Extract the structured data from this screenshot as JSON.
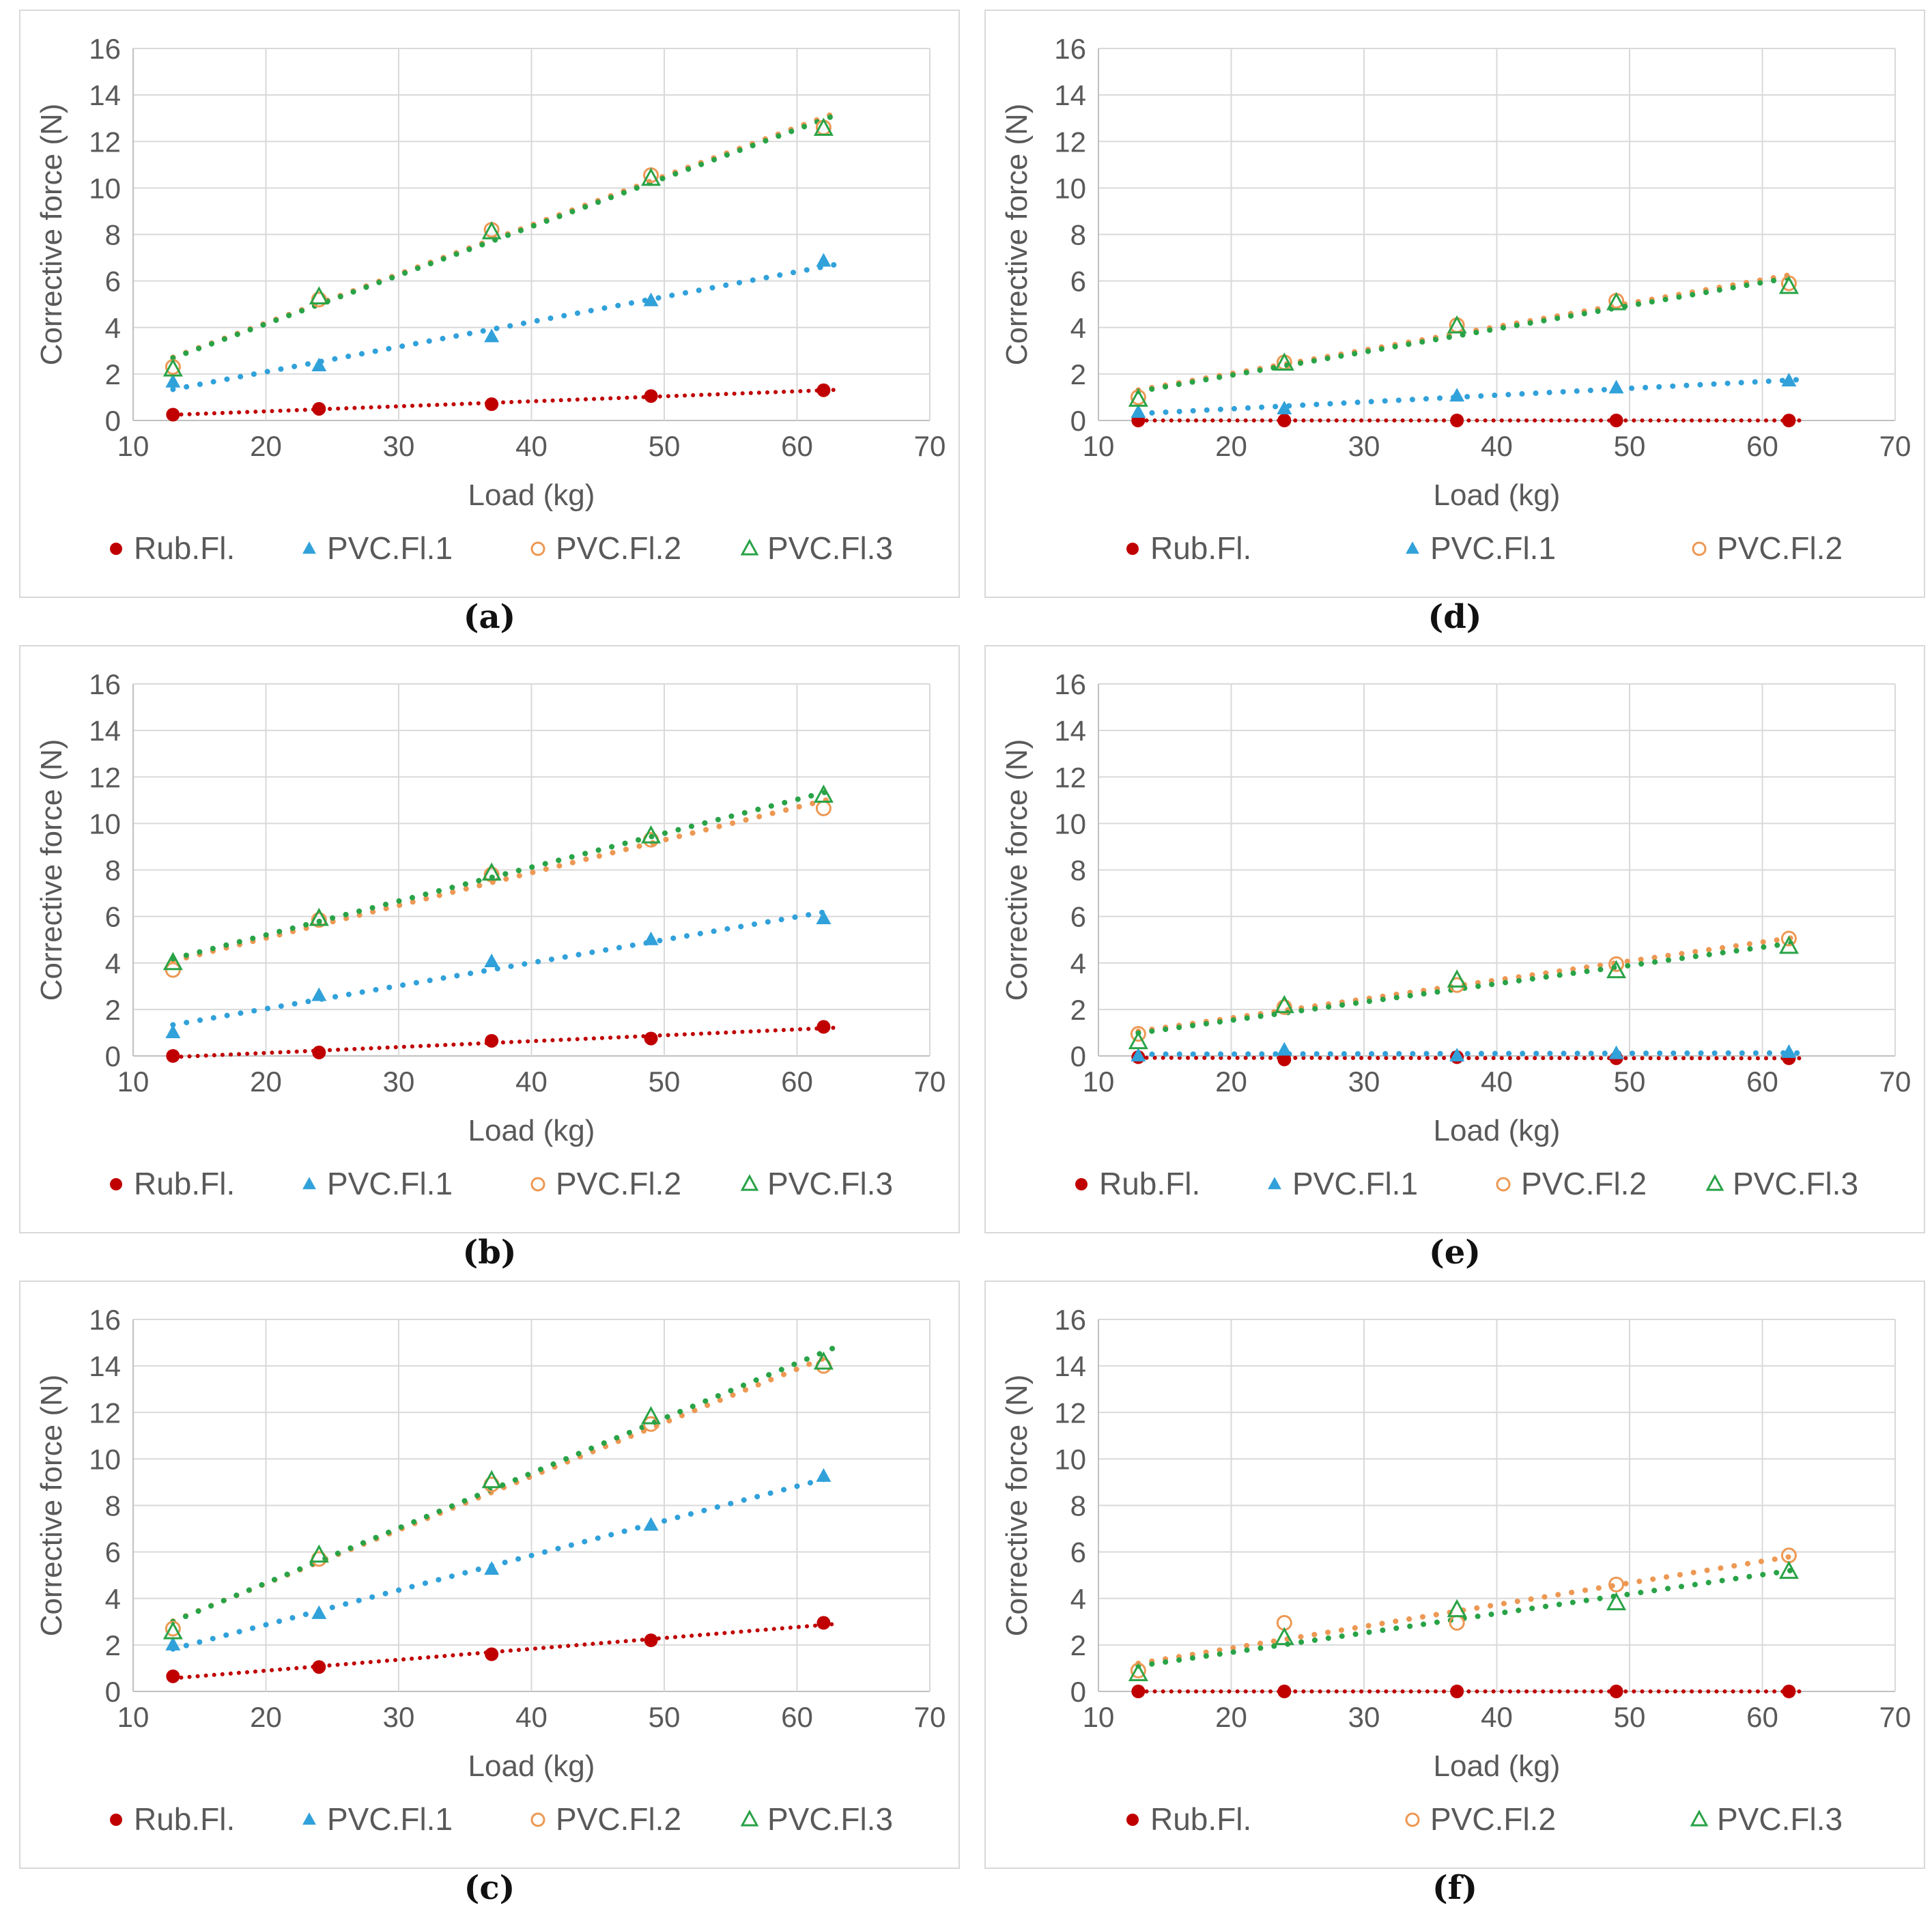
{
  "page": {
    "background": "#ffffff"
  },
  "styles": {
    "text_color": "#595959",
    "grid_color": "#d9d9d9",
    "axis_color": "#c0c0c0",
    "series_colors": {
      "rub_fl": "#C00000",
      "pvc_fl_1": "#31A1DA",
      "pvc_fl_2": "#ED9853",
      "pvc_fl_3": "#29A347"
    }
  },
  "chart_data": [
    {
      "id": "a",
      "caption": "(a)",
      "type": "scatter",
      "xlabel": "Load (kg)",
      "ylabel": "Corrective force (N)",
      "xlim": [
        10,
        70
      ],
      "ylim": [
        0,
        16
      ],
      "xticks": [
        10,
        20,
        30,
        40,
        50,
        60,
        70
      ],
      "yticks": [
        0,
        2,
        4,
        6,
        8,
        10,
        12,
        14,
        16
      ],
      "grid": true,
      "legend_position": "bottom",
      "x": [
        13,
        24,
        37,
        49,
        62
      ],
      "series": [
        {
          "name": "Rub.Fl.",
          "marker": "filled-circle",
          "color": "#C00000",
          "trendline": "dotted",
          "in_legend": true,
          "values": [
            0.25,
            0.5,
            0.7,
            1.05,
            1.3
          ]
        },
        {
          "name": "PVC.Fl.1",
          "marker": "filled-triangle",
          "color": "#31A1DA",
          "trendline": "dotted",
          "in_legend": true,
          "values": [
            1.65,
            2.35,
            3.6,
            5.15,
            6.85
          ]
        },
        {
          "name": "PVC.Fl.2",
          "marker": "open-circle",
          "color": "#ED9853",
          "trendline": "dotted",
          "in_legend": true,
          "values": [
            2.3,
            5.2,
            8.2,
            10.55,
            12.6
          ]
        },
        {
          "name": "PVC.Fl.3",
          "marker": "open-triangle",
          "color": "#29A347",
          "trendline": "dotted",
          "in_legend": true,
          "values": [
            2.2,
            5.3,
            8.1,
            10.4,
            12.55
          ]
        }
      ]
    },
    {
      "id": "d",
      "caption": "(d)",
      "type": "scatter",
      "xlabel": "Load (kg)",
      "ylabel": "Corrective force (N)",
      "xlim": [
        10,
        70
      ],
      "ylim": [
        0,
        16
      ],
      "xticks": [
        10,
        20,
        30,
        40,
        50,
        60,
        70
      ],
      "yticks": [
        0,
        2,
        4,
        6,
        8,
        10,
        12,
        14,
        16
      ],
      "grid": true,
      "legend_position": "bottom",
      "x": [
        13,
        24,
        37,
        49,
        62
      ],
      "series": [
        {
          "name": "Rub.Fl.",
          "marker": "filled-circle",
          "color": "#C00000",
          "trendline": "dotted",
          "in_legend": true,
          "values": [
            0,
            0,
            0,
            0,
            0
          ]
        },
        {
          "name": "PVC.Fl.1",
          "marker": "filled-triangle",
          "color": "#31A1DA",
          "trendline": "dotted",
          "in_legend": true,
          "values": [
            0.35,
            0.5,
            1.05,
            1.4,
            1.7
          ]
        },
        {
          "name": "PVC.Fl.2",
          "marker": "open-circle",
          "color": "#ED9853",
          "trendline": "dotted",
          "in_legend": true,
          "values": [
            1.0,
            2.5,
            4.1,
            5.15,
            5.9
          ]
        },
        {
          "name": "PVC.Fl.3",
          "marker": "open-triangle",
          "color": "#29A347",
          "trendline": "dotted",
          "in_legend": false,
          "values": [
            0.9,
            2.45,
            4.05,
            5.05,
            5.75
          ]
        }
      ]
    },
    {
      "id": "b",
      "caption": "(b)",
      "type": "scatter",
      "xlabel": "Load (kg)",
      "ylabel": "Corrective force (N)",
      "xlim": [
        10,
        70
      ],
      "ylim": [
        0,
        16
      ],
      "xticks": [
        10,
        20,
        30,
        40,
        50,
        60,
        70
      ],
      "yticks": [
        0,
        2,
        4,
        6,
        8,
        10,
        12,
        14,
        16
      ],
      "grid": true,
      "legend_position": "bottom",
      "x": [
        13,
        24,
        37,
        49,
        62
      ],
      "series": [
        {
          "name": "Rub.Fl.",
          "marker": "filled-circle",
          "color": "#C00000",
          "trendline": "dotted",
          "in_legend": true,
          "values": [
            0.0,
            0.15,
            0.65,
            0.75,
            1.25
          ]
        },
        {
          "name": "PVC.Fl.1",
          "marker": "filled-triangle",
          "color": "#31A1DA",
          "trendline": "dotted",
          "in_legend": true,
          "values": [
            1.0,
            2.6,
            4.05,
            5.0,
            5.9
          ]
        },
        {
          "name": "PVC.Fl.2",
          "marker": "open-circle",
          "color": "#ED9853",
          "trendline": "dotted",
          "in_legend": true,
          "values": [
            3.7,
            5.85,
            7.8,
            9.3,
            10.65
          ]
        },
        {
          "name": "PVC.Fl.3",
          "marker": "open-triangle",
          "color": "#29A347",
          "trendline": "dotted",
          "in_legend": true,
          "values": [
            4.0,
            5.9,
            7.85,
            9.45,
            11.2
          ]
        }
      ]
    },
    {
      "id": "e",
      "caption": "(e)",
      "type": "scatter",
      "xlabel": "Load (kg)",
      "ylabel": "Corrective force (N)",
      "xlim": [
        10,
        70
      ],
      "ylim": [
        0,
        16
      ],
      "xticks": [
        10,
        20,
        30,
        40,
        50,
        60,
        70
      ],
      "yticks": [
        0,
        2,
        4,
        6,
        8,
        10,
        12,
        14,
        16
      ],
      "grid": true,
      "legend_position": "bottom",
      "x": [
        13,
        24,
        37,
        49,
        62
      ],
      "series": [
        {
          "name": "Rub.Fl.",
          "marker": "filled-circle",
          "color": "#C00000",
          "trendline": "dotted",
          "in_legend": true,
          "values": [
            -0.05,
            -0.15,
            -0.05,
            -0.1,
            -0.1
          ]
        },
        {
          "name": "PVC.Fl.1",
          "marker": "filled-triangle",
          "color": "#31A1DA",
          "trendline": "dotted",
          "in_legend": true,
          "values": [
            0.0,
            0.25,
            0.0,
            0.1,
            0.15
          ]
        },
        {
          "name": "PVC.Fl.2",
          "marker": "open-circle",
          "color": "#ED9853",
          "trendline": "dotted",
          "in_legend": true,
          "values": [
            0.95,
            2.1,
            3.05,
            3.95,
            5.05
          ]
        },
        {
          "name": "PVC.Fl.3",
          "marker": "open-triangle",
          "color": "#29A347",
          "trendline": "dotted",
          "in_legend": true,
          "values": [
            0.6,
            2.15,
            3.25,
            3.65,
            4.7
          ]
        }
      ]
    },
    {
      "id": "c",
      "caption": "(c)",
      "type": "scatter",
      "xlabel": "Load (kg)",
      "ylabel": "Corrective force (N)",
      "xlim": [
        10,
        70
      ],
      "ylim": [
        0,
        16
      ],
      "xticks": [
        10,
        20,
        30,
        40,
        50,
        60,
        70
      ],
      "yticks": [
        0,
        2,
        4,
        6,
        8,
        10,
        12,
        14,
        16
      ],
      "grid": true,
      "legend_position": "bottom",
      "x": [
        13,
        24,
        37,
        49,
        62
      ],
      "series": [
        {
          "name": "Rub.Fl.",
          "marker": "filled-circle",
          "color": "#C00000",
          "trendline": "dotted",
          "in_legend": true,
          "values": [
            0.65,
            1.05,
            1.6,
            2.2,
            2.95
          ]
        },
        {
          "name": "PVC.Fl.1",
          "marker": "filled-triangle",
          "color": "#31A1DA",
          "trendline": "dotted",
          "in_legend": true,
          "values": [
            2.0,
            3.35,
            5.25,
            7.15,
            9.25
          ]
        },
        {
          "name": "PVC.Fl.2",
          "marker": "open-circle",
          "color": "#ED9853",
          "trendline": "dotted",
          "in_legend": true,
          "values": [
            2.7,
            5.7,
            8.9,
            11.5,
            14.0
          ]
        },
        {
          "name": "PVC.Fl.3",
          "marker": "open-triangle",
          "color": "#29A347",
          "trendline": "dotted",
          "in_legend": true,
          "values": [
            2.55,
            5.85,
            9.05,
            11.8,
            14.15
          ]
        }
      ]
    },
    {
      "id": "f",
      "caption": "(f)",
      "type": "scatter",
      "xlabel": "Load (kg)",
      "ylabel": "Corrective force (N)",
      "xlim": [
        10,
        70
      ],
      "ylim": [
        0,
        16
      ],
      "xticks": [
        10,
        20,
        30,
        40,
        50,
        60,
        70
      ],
      "yticks": [
        0,
        2,
        4,
        6,
        8,
        10,
        12,
        14,
        16
      ],
      "grid": true,
      "legend_position": "bottom",
      "x": [
        13,
        24,
        37,
        49,
        62
      ],
      "series": [
        {
          "name": "Rub.Fl.",
          "marker": "filled-circle",
          "color": "#C00000",
          "trendline": "dotted",
          "in_legend": true,
          "values": [
            0,
            0,
            0,
            0,
            0
          ]
        },
        {
          "name": "PVC.Fl.2",
          "marker": "open-circle",
          "color": "#ED9853",
          "trendline": "dotted",
          "in_legend": true,
          "values": [
            0.9,
            2.95,
            2.95,
            4.6,
            5.85
          ]
        },
        {
          "name": "PVC.Fl.3",
          "marker": "open-triangle",
          "color": "#29A347",
          "trendline": "dotted",
          "in_legend": true,
          "values": [
            0.75,
            2.3,
            3.5,
            3.8,
            5.15
          ]
        }
      ]
    }
  ]
}
